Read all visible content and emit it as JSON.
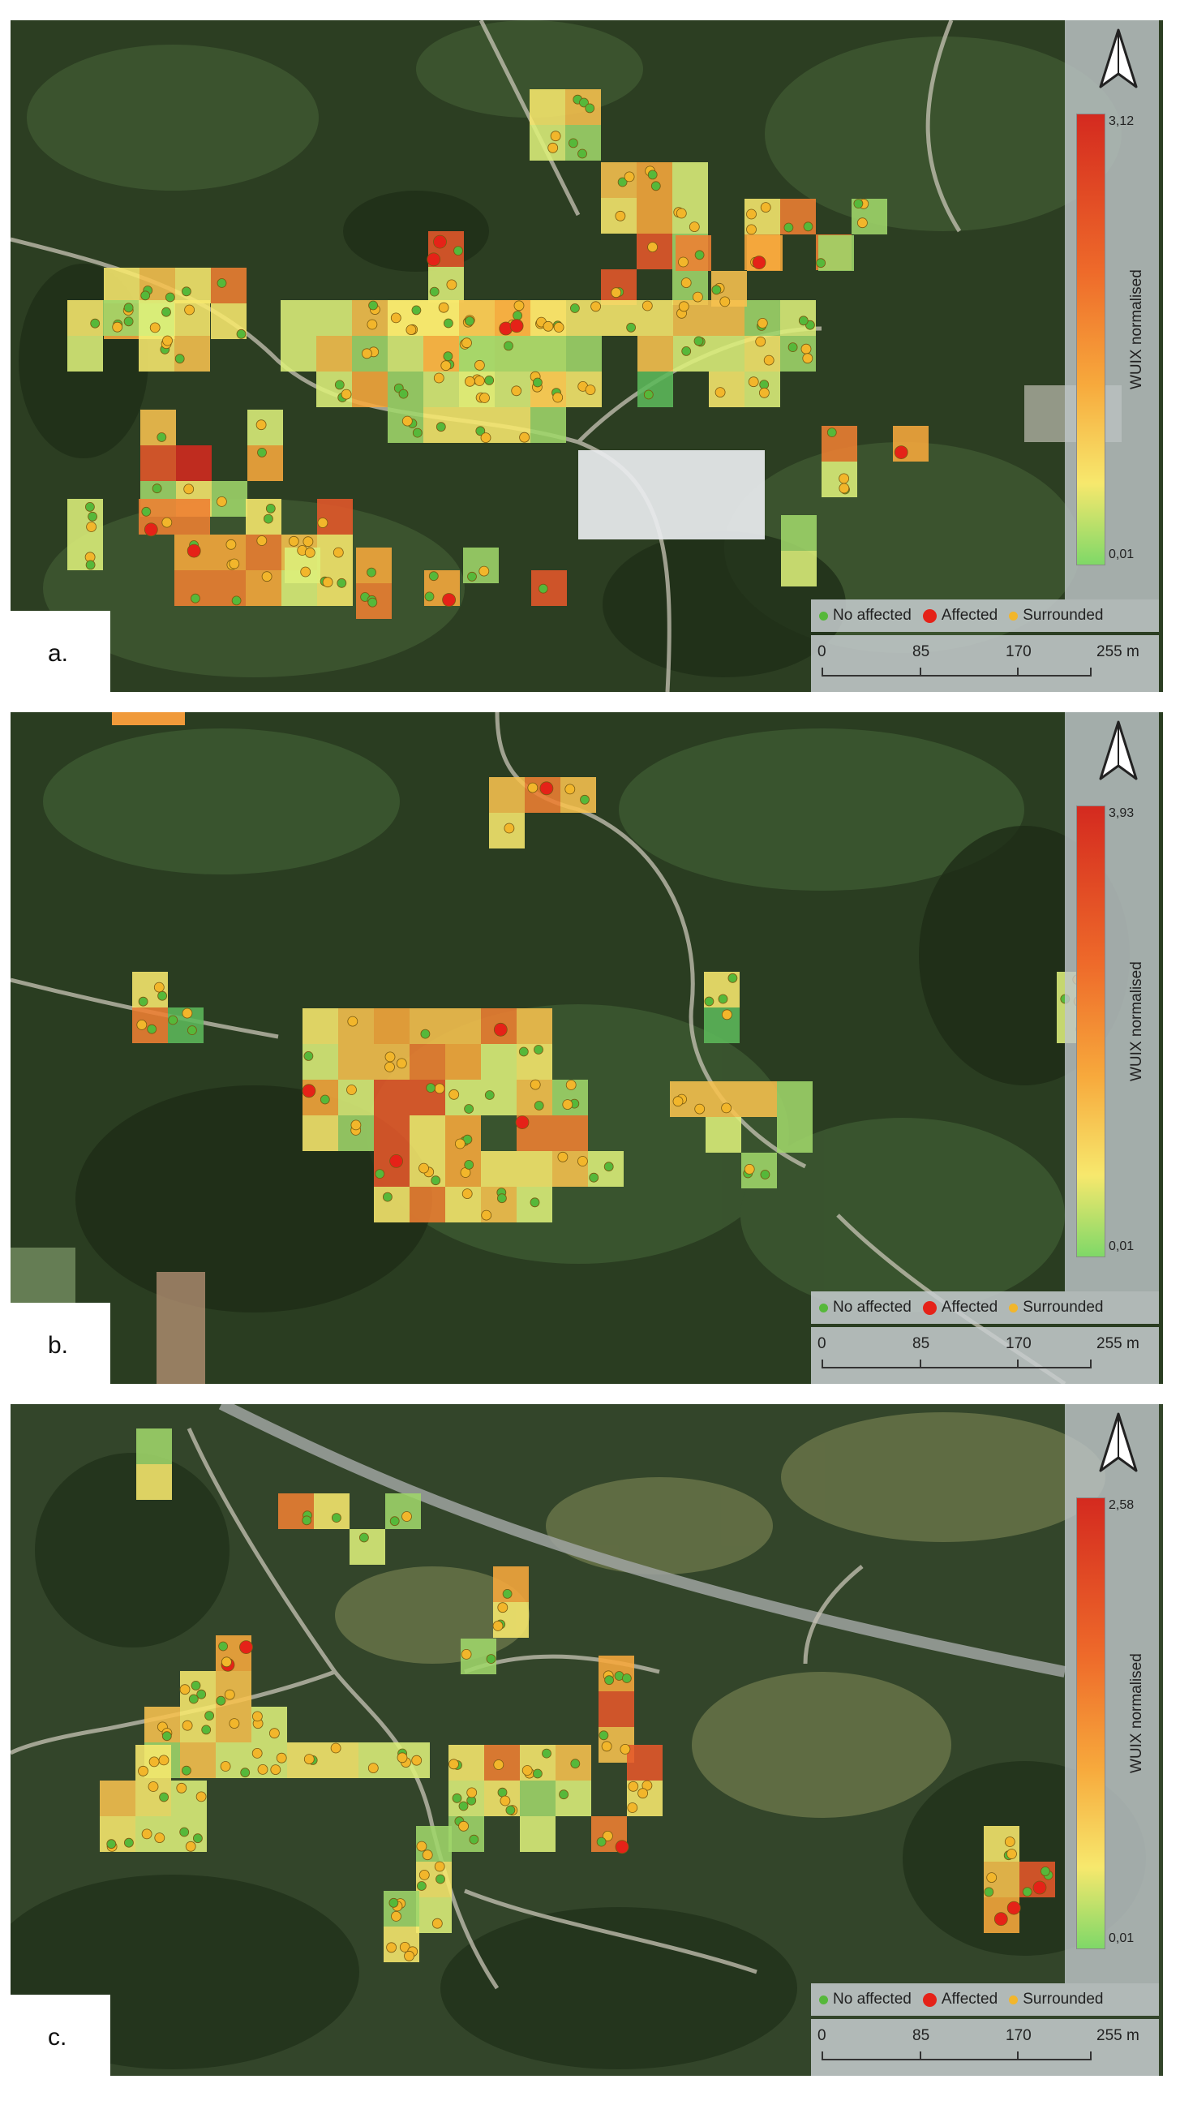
{
  "legend": {
    "colorbar_title": "WUIX normalised",
    "point_items": [
      {
        "label": "No affected",
        "color": "#56b83a"
      },
      {
        "label": "Affected",
        "color": "#e52218"
      },
      {
        "label": "Surrounded",
        "color": "#f2b62b"
      }
    ],
    "scale_ticks": [
      "0",
      "85",
      "170",
      "255 m"
    ],
    "north_icon": "north-arrow-icon"
  },
  "colors": {
    "high": "#d42a1f",
    "mid_high": "#ee6a2a",
    "mid": "#f7a93c",
    "mid_low": "#f7e86d",
    "low": "#7fd868"
  },
  "panels": [
    {
      "label": "a.",
      "wuix_max": "3,12",
      "wuix_min": "0,01"
    },
    {
      "label": "b.",
      "wuix_max": "3,93",
      "wuix_min": "0,01"
    },
    {
      "label": "c.",
      "wuix_max": "2,58",
      "wuix_min": "0,01"
    }
  ]
}
